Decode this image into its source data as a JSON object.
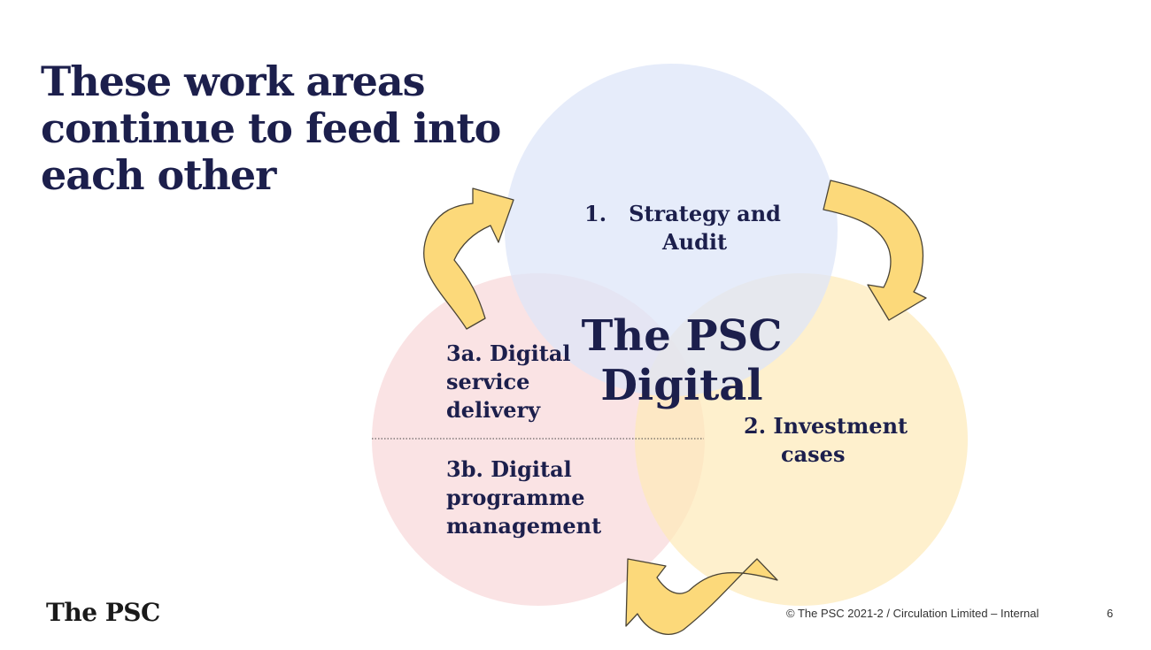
{
  "slide": {
    "title_lines": [
      "These work areas",
      "continue to feed into",
      "each other"
    ],
    "center_lines": [
      "The PSC",
      "Digital"
    ],
    "areas": {
      "strategy": {
        "lines": [
          "1.   Strategy and",
          "Audit"
        ]
      },
      "investment": {
        "lines": [
          "2. Investment",
          "cases"
        ]
      },
      "delivery": {
        "lines": [
          "3a. Digital",
          "service",
          "delivery"
        ]
      },
      "programme": {
        "lines": [
          "3b. Digital",
          "programme",
          "management"
        ]
      }
    },
    "colors": {
      "title": "#1c1f4c",
      "circle_strategy": "#dde6f8",
      "circle_investment": "#fdeab8",
      "circle_delivery": "#f8d7d8",
      "arrow_fill": "#fcd97a",
      "arrow_stroke": "#4a4436"
    }
  },
  "footer": {
    "logo": "The PSC",
    "copyright": "© The PSC 2021-2 / Circulation Limited – Internal",
    "page_number": "6"
  }
}
